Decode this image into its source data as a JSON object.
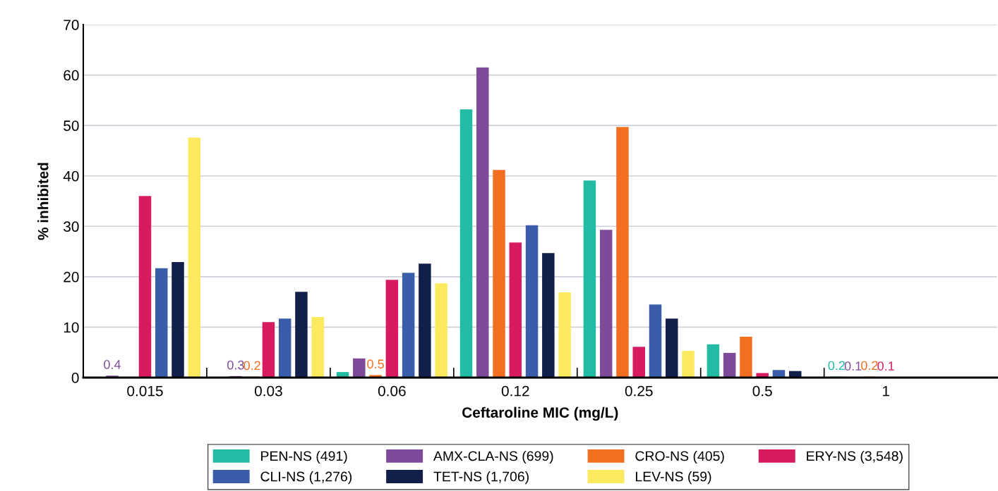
{
  "chart_data": {
    "type": "bar",
    "xlabel": "Ceftaroline MIC (mg/L)",
    "ylabel": "% inhibited",
    "categories": [
      "0.015",
      "0.03",
      "0.06",
      "0.12",
      "0.25",
      "0.5",
      "1"
    ],
    "series": [
      {
        "name": "PEN-NS (491)",
        "color": "#22bba4",
        "values": [
          null,
          null,
          1.1,
          53.2,
          39.1,
          6.6,
          0.2
        ],
        "value_labels": [
          null,
          null,
          null,
          null,
          null,
          null,
          "0.2"
        ]
      },
      {
        "name": "AMX-CLA-NS (699)",
        "color": "#7e4a9a",
        "values": [
          0.4,
          0.3,
          3.8,
          61.5,
          29.3,
          4.9,
          0.1
        ],
        "value_labels": [
          "0.4",
          "0.3",
          null,
          null,
          null,
          null,
          "0.1"
        ]
      },
      {
        "name": "CRO-NS (405)",
        "color": "#f26f21",
        "values": [
          null,
          0.2,
          0.5,
          41.2,
          49.7,
          8.1,
          0.2
        ],
        "value_labels": [
          null,
          "0.2",
          "0.5",
          null,
          null,
          null,
          "0.2"
        ]
      },
      {
        "name": "ERY-NS (3,548)",
        "color": "#d81b60",
        "values": [
          36.0,
          11.0,
          19.4,
          26.8,
          6.1,
          0.9,
          0.1
        ],
        "value_labels": [
          null,
          null,
          null,
          null,
          null,
          null,
          "0.1"
        ]
      },
      {
        "name": "CLI-NS (1,276)",
        "color": "#3a5daa",
        "values": [
          21.7,
          11.7,
          20.8,
          30.2,
          14.5,
          1.5,
          null
        ]
      },
      {
        "name": "TET-NS (1,706)",
        "color": "#121f4a",
        "values": [
          22.9,
          17.0,
          22.6,
          24.7,
          11.7,
          1.3,
          null
        ]
      },
      {
        "name": "LEV-NS (59)",
        "color": "#fde95e",
        "values": [
          47.6,
          12.0,
          18.7,
          16.9,
          5.3,
          null,
          null
        ]
      }
    ],
    "ylim": [
      0,
      70
    ],
    "yticks": [
      0,
      10,
      20,
      30,
      40,
      50,
      60,
      70
    ],
    "grid": "y",
    "legend": "bottom"
  }
}
